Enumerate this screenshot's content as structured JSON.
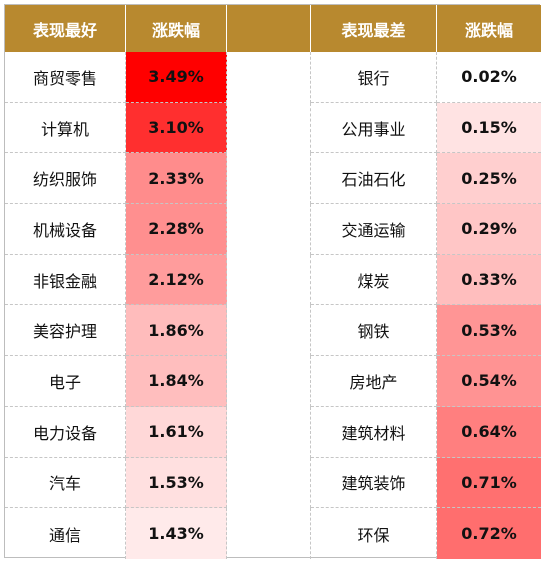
{
  "headers": {
    "best_sector": "表现最好",
    "best_change": "涨跌幅",
    "worst_sector": "表现最差",
    "worst_change": "涨跌幅"
  },
  "best": [
    {
      "name": "商贸零售",
      "change": "3.49%",
      "bg": "#ff0000"
    },
    {
      "name": "计算机",
      "change": "3.10%",
      "bg": "#ff2f2f"
    },
    {
      "name": "纺织服饰",
      "change": "2.33%",
      "bg": "#ff8c8c"
    },
    {
      "name": "机械设备",
      "change": "2.28%",
      "bg": "#ff8f8f"
    },
    {
      "name": "非银金融",
      "change": "2.12%",
      "bg": "#ff9c9c"
    },
    {
      "name": "美容护理",
      "change": "1.86%",
      "bg": "#ffbcbc"
    },
    {
      "name": "电子",
      "change": "1.84%",
      "bg": "#ffbebe"
    },
    {
      "name": "电力设备",
      "change": "1.61%",
      "bg": "#ffd8d8"
    },
    {
      "name": "汽车",
      "change": "1.53%",
      "bg": "#ffe0e0"
    },
    {
      "name": "通信",
      "change": "1.43%",
      "bg": "#ffeaea"
    }
  ],
  "worst": [
    {
      "name": "银行",
      "change": "0.02%",
      "bg": "#ffffff"
    },
    {
      "name": "公用事业",
      "change": "0.15%",
      "bg": "#ffe3e3"
    },
    {
      "name": "石油石化",
      "change": "0.25%",
      "bg": "#ffcfcf"
    },
    {
      "name": "交通运输",
      "change": "0.29%",
      "bg": "#ffc6c6"
    },
    {
      "name": "煤炭",
      "change": "0.33%",
      "bg": "#ffbebe"
    },
    {
      "name": "钢铁",
      "change": "0.53%",
      "bg": "#ff9595"
    },
    {
      "name": "房地产",
      "change": "0.54%",
      "bg": "#ff9393"
    },
    {
      "name": "建筑材料",
      "change": "0.64%",
      "bg": "#ff7f7f"
    },
    {
      "name": "建筑装饰",
      "change": "0.71%",
      "bg": "#ff7070"
    },
    {
      "name": "环保",
      "change": "0.72%",
      "bg": "#ff6e6e"
    }
  ]
}
